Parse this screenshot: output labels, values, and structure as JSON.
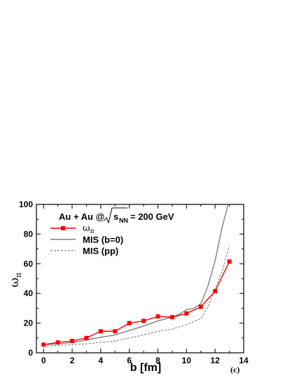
{
  "chart_data": {
    "type": "line",
    "xlabel": "b [fm]",
    "ylabel": "ω_π",
    "xlim": [
      -0.5,
      14
    ],
    "ylim": [
      0,
      100
    ],
    "xticks": [
      0,
      2,
      4,
      6,
      8,
      10,
      12,
      14
    ],
    "yticks": [
      0,
      20,
      40,
      60,
      80,
      100
    ],
    "annotation": "Au + Au @",
    "annotation_sqrt": "s",
    "annotation_sub": "NN",
    "annotation_value": "= 200 GeV",
    "panel_label": "(c)",
    "legend_position": "top-left",
    "series": [
      {
        "name": "ω_π",
        "color": "#ff0000",
        "style": "solid-markers",
        "x": [
          0,
          1,
          2,
          3,
          4,
          5,
          6,
          7,
          8,
          9,
          10,
          11,
          12,
          13
        ],
        "y": [
          5.5,
          7,
          8,
          10,
          14.5,
          14.5,
          20,
          21.5,
          24.5,
          24,
          26.5,
          31,
          41.5,
          61.5
        ]
      },
      {
        "name": "MIS (b=0)",
        "color": "#808080",
        "style": "solid",
        "x": [
          0,
          1,
          2,
          3,
          4,
          5,
          6,
          7,
          8,
          9,
          9.5,
          10,
          10.5,
          11,
          11.5,
          12,
          12.5,
          13
        ],
        "y": [
          5.5,
          6,
          7,
          8.5,
          10.5,
          12,
          15,
          18,
          21.5,
          24,
          26,
          29,
          30,
          33,
          45,
          62,
          85,
          103
        ]
      },
      {
        "name": "MIS (pp)",
        "color": "#808080",
        "style": "dashed",
        "x": [
          0,
          1,
          2,
          3,
          4,
          5,
          6,
          7,
          8,
          9,
          10,
          10.5,
          11,
          11.5,
          12,
          12.5,
          13
        ],
        "y": [
          4.5,
          5,
          5.5,
          6,
          7,
          8,
          10,
          12,
          14.5,
          16,
          19,
          21,
          23,
          31,
          43,
          55,
          72
        ]
      }
    ]
  }
}
